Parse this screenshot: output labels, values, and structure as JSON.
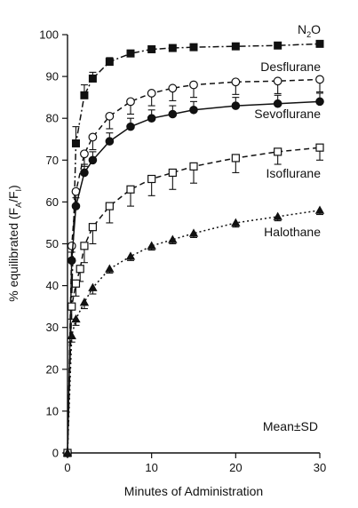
{
  "chart_data": {
    "type": "line",
    "title": "",
    "xlabel": "Minutes of Administration",
    "ylabel_main": "% equilibrated (F",
    "ylabel_sub1": "A",
    "ylabel_mid": "/F",
    "ylabel_sub2": "I",
    "ylabel_end": ")",
    "xlim": [
      0,
      30
    ],
    "ylim": [
      0,
      100
    ],
    "xticks": [
      0,
      10,
      20,
      30
    ],
    "yticks": [
      0,
      10,
      20,
      30,
      40,
      50,
      60,
      70,
      80,
      90,
      100
    ],
    "grid": false,
    "annotation": "Mean±SD",
    "series": [
      {
        "name": "N2O",
        "label_main": "N",
        "label_sub": "2",
        "label_end": "O",
        "marker": "square-filled",
        "dash": "dashdot",
        "x": [
          0,
          1,
          2,
          3,
          5,
          7.5,
          10,
          12.5,
          15,
          20,
          25,
          30
        ],
        "y": [
          0,
          74,
          85.5,
          89.5,
          93.5,
          95.5,
          96.5,
          96.8,
          97,
          97.2,
          97.4,
          97.8
        ],
        "sd": [
          0,
          4,
          2.5,
          1.5,
          1,
          0.8,
          0.6,
          0.5,
          0.5,
          0.5,
          0.5,
          0.5
        ]
      },
      {
        "name": "Desflurane",
        "marker": "circle-open",
        "dash": "dash",
        "x": [
          0,
          0.5,
          1,
          2,
          3,
          5,
          7.5,
          10,
          12.5,
          15,
          20,
          25,
          30
        ],
        "y": [
          0,
          49.5,
          62.5,
          71.5,
          75.5,
          80.5,
          84,
          86,
          87.2,
          88,
          88.7,
          88.9,
          89.3
        ],
        "sd": [
          0,
          3,
          3,
          3,
          3,
          3,
          3,
          3,
          3,
          3,
          3,
          3,
          3
        ]
      },
      {
        "name": "Sevoflurane",
        "marker": "circle-filled",
        "dash": "solid",
        "x": [
          0,
          0.5,
          1,
          2,
          3,
          5,
          7.5,
          10,
          12.5,
          15,
          20,
          25,
          30
        ],
        "y": [
          0,
          46,
          59,
          67,
          70,
          74.5,
          78,
          80,
          81,
          82,
          83,
          83.5,
          84
        ],
        "sd": [
          0,
          2,
          2,
          2,
          2,
          2,
          2,
          2,
          2,
          2,
          2,
          2,
          2
        ]
      },
      {
        "name": "Isoflurane",
        "marker": "square-open",
        "dash": "dash",
        "x": [
          0,
          0.5,
          1,
          1.5,
          2,
          3,
          5,
          7.5,
          10,
          12.5,
          15,
          20,
          25,
          30
        ],
        "y": [
          0,
          35,
          40.5,
          44,
          49.5,
          54,
          59,
          63,
          65.5,
          67,
          68.5,
          70.5,
          72,
          73
        ],
        "sd": [
          0,
          3,
          3,
          3,
          4,
          4,
          4,
          4,
          4,
          4,
          4,
          3.5,
          3,
          3
        ]
      },
      {
        "name": "Halothane",
        "marker": "triangle-filled",
        "dash": "dot",
        "x": [
          0,
          0.5,
          1,
          2,
          3,
          5,
          7.5,
          10,
          12.5,
          15,
          20,
          25,
          30
        ],
        "y": [
          0,
          28,
          32,
          36,
          39.5,
          44,
          47,
          49.5,
          51,
          52.5,
          55,
          56.5,
          58
        ],
        "sd": [
          0,
          1.5,
          1.5,
          1.5,
          1.5,
          1,
          1,
          1,
          1,
          1,
          1,
          1,
          1
        ]
      }
    ]
  }
}
